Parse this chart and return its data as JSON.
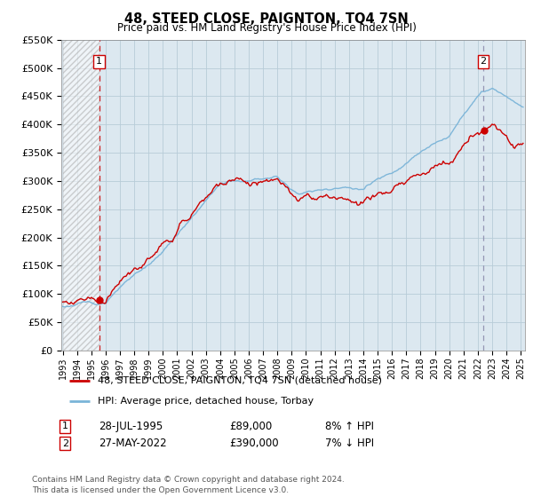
{
  "title": "48, STEED CLOSE, PAIGNTON, TQ4 7SN",
  "subtitle": "Price paid vs. HM Land Registry's House Price Index (HPI)",
  "legend_line1": "48, STEED CLOSE, PAIGNTON, TQ4 7SN (detached house)",
  "legend_line2": "HPI: Average price, detached house, Torbay",
  "purchase1_date": "28-JUL-1995",
  "purchase1_price": 89000,
  "purchase1_label": "8% ↑ HPI",
  "purchase2_date": "27-MAY-2022",
  "purchase2_price": 390000,
  "purchase2_label": "7% ↓ HPI",
  "footnote": "Contains HM Land Registry data © Crown copyright and database right 2024.\nThis data is licensed under the Open Government Licence v3.0.",
  "hpi_color": "#7ab4d8",
  "price_color": "#cc0000",
  "marker_color": "#cc0000",
  "dashed1_color": "#cc0000",
  "dashed2_color": "#8888aa",
  "ylim": [
    0,
    550000
  ],
  "yticks": [
    0,
    50000,
    100000,
    150000,
    200000,
    250000,
    300000,
    350000,
    400000,
    450000,
    500000,
    550000
  ],
  "ytick_labels": [
    "£0",
    "£50K",
    "£100K",
    "£150K",
    "£200K",
    "£250K",
    "£300K",
    "£350K",
    "£400K",
    "£450K",
    "£500K",
    "£550K"
  ],
  "background_color": "#ffffff",
  "plot_bg_color": "#dce8f0",
  "grid_color": "#b8ccd8",
  "purchase1_time": 1995.542,
  "purchase2_time": 2022.375,
  "years_start": 1993.0,
  "years_end": 2025.25,
  "xtick_years": [
    1993,
    1994,
    1995,
    1996,
    1997,
    1998,
    1999,
    2000,
    2001,
    2002,
    2003,
    2004,
    2005,
    2006,
    2007,
    2008,
    2009,
    2010,
    2011,
    2012,
    2013,
    2014,
    2015,
    2016,
    2017,
    2018,
    2019,
    2020,
    2021,
    2022,
    2023,
    2024,
    2025
  ]
}
